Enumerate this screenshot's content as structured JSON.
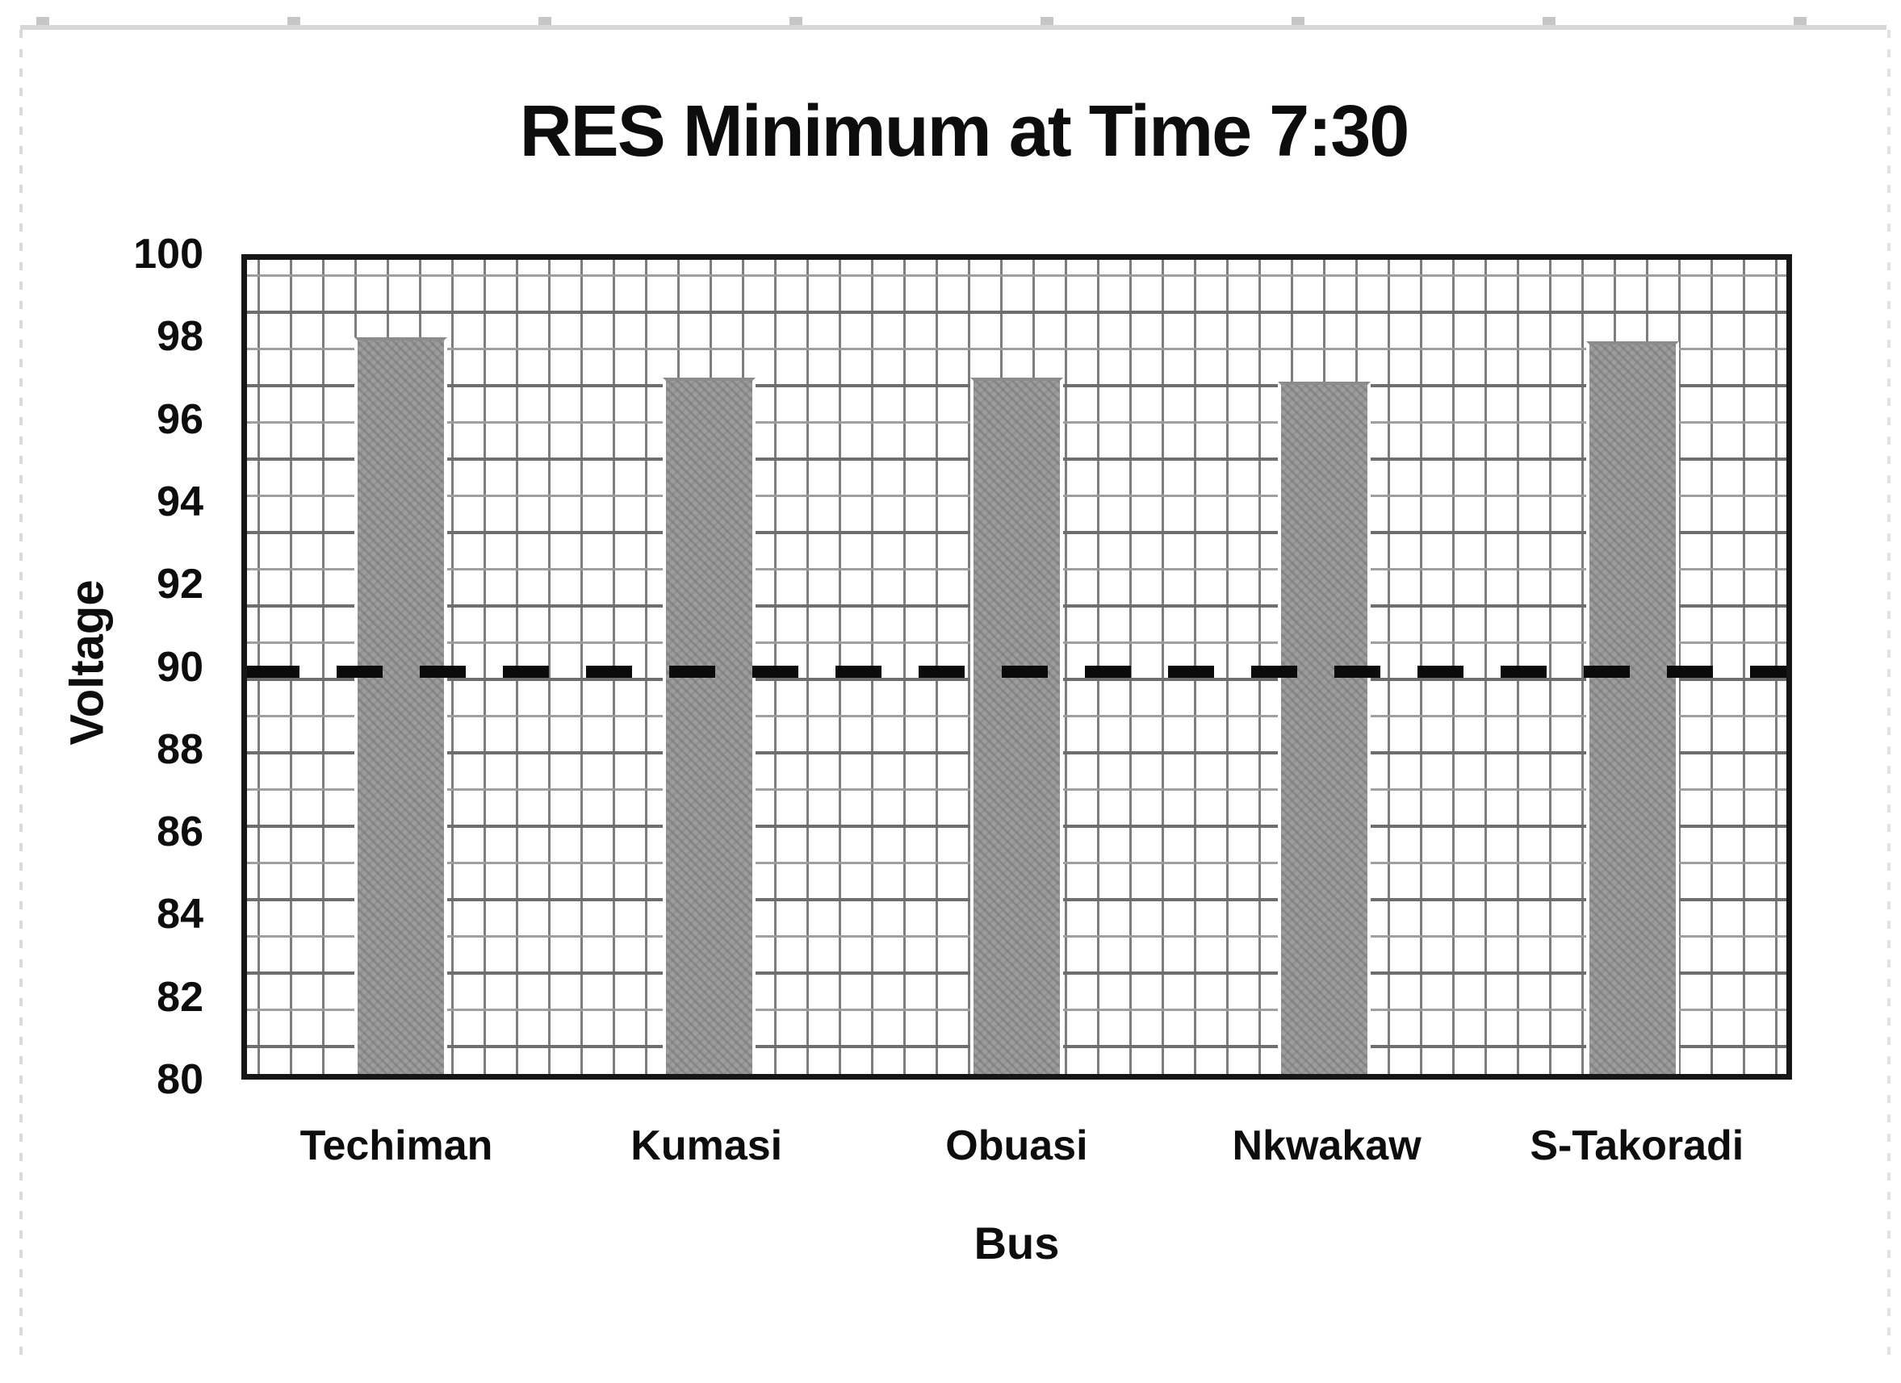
{
  "chart_data": {
    "type": "bar",
    "title": "RES Minimum at Time 7:30",
    "xlabel": "Bus",
    "ylabel": "Voltage",
    "categories": [
      "Techiman",
      "Kumasi",
      "Obuasi",
      "Nkwakaw",
      "S-Takoradi"
    ],
    "values": [
      98.1,
      97.1,
      97.1,
      97.0,
      98.0
    ],
    "ylim": [
      80,
      100
    ],
    "ytick_step": 2,
    "ytick_labels": [
      "100",
      "98",
      "96",
      "94",
      "92",
      "90",
      "88",
      "86",
      "84",
      "82",
      "80"
    ],
    "reference_line": {
      "value": 90,
      "style": "dashed",
      "color": "#0b0b0b"
    },
    "grid": "fine graph-paper mesh, horizontal and vertical gray lines",
    "legend_position": "none",
    "colors": {
      "bar_fill": "#9d9d9d",
      "bar_outline": "#ffffff",
      "plot_border": "#161616",
      "grid_major": "#6e6e6e",
      "grid_minor": "#9f9f9f",
      "text": "#0d0d0d"
    }
  }
}
